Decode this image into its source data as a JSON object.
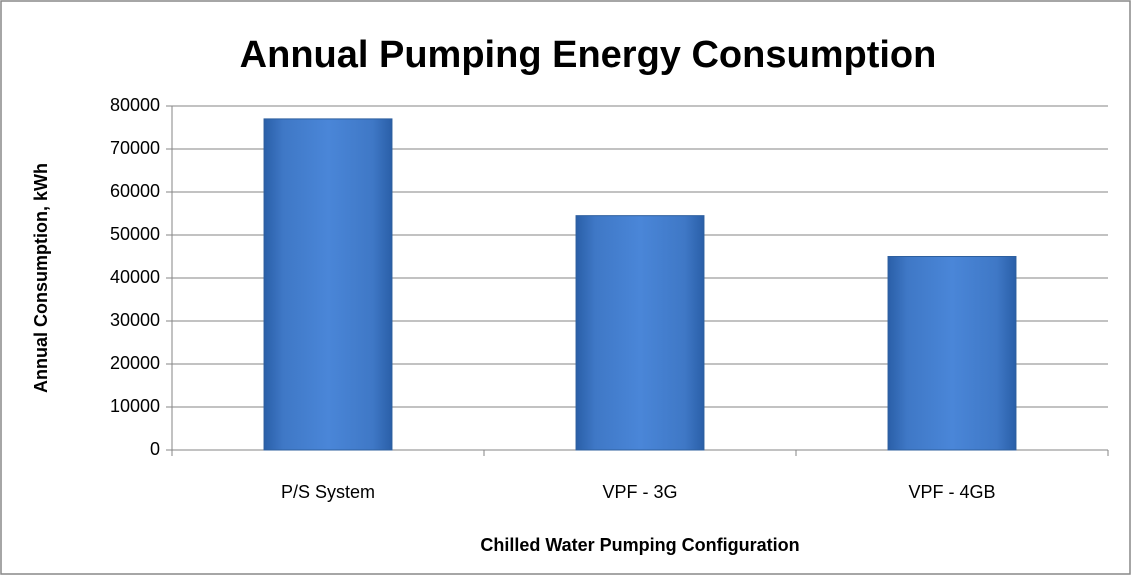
{
  "chart_data": {
    "type": "bar",
    "title": "Annual Pumping Energy Consumption",
    "x_label": "Chilled Water Pumping Configuration",
    "y_label": "Annual Consumption, kWh",
    "categories": [
      "P/S System",
      "VPF - 3G",
      "VPF - 4GB"
    ],
    "values": [
      77000,
      54500,
      45000
    ],
    "color": "#4a86d4",
    "ylim": [
      0,
      80000
    ],
    "yticks": [
      0,
      10000,
      20000,
      30000,
      40000,
      50000,
      60000,
      70000,
      80000
    ],
    "grid": true
  }
}
